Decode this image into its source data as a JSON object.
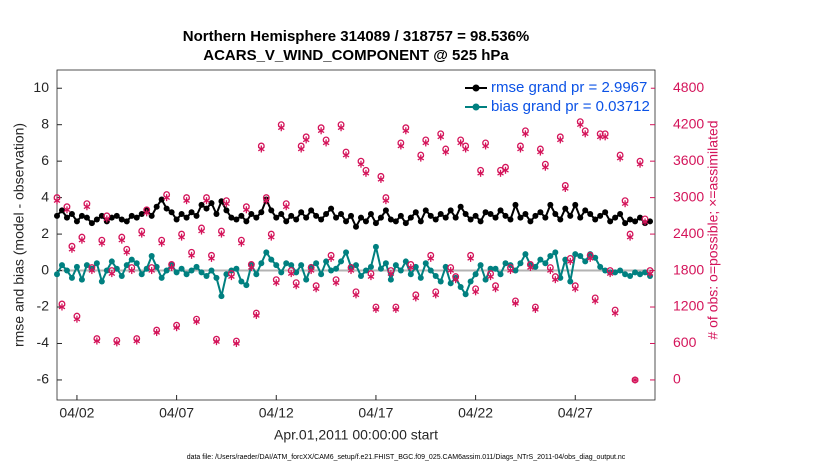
{
  "chart_data": {
    "type": "line",
    "title": "Northern Hemisphere 314089 / 318757 = 98.536%",
    "subtitle": "ACARS_V_WIND_COMPONENT @ 525 hPa",
    "xlabel": "Apr.01,2011 00:00:00 start",
    "ylabel": "rmse and bias (model - observation)",
    "y2label": "# of obs: o=possible; ×=assimilated",
    "footnote": "data file: /Users/raeder/DAI/ATM_forcXX/CAM6_setup/f.e21.FHIST_BGC.f09_025.CAM6assim.011/Diags_NTrS_2011-04/obs_diag_output.nc",
    "legend": "upper right",
    "xlim": [
      0,
      30
    ],
    "xticks": [
      {
        "value": 1,
        "label": "04/02"
      },
      {
        "value": 6,
        "label": "04/07"
      },
      {
        "value": 11,
        "label": "04/12"
      },
      {
        "value": 16,
        "label": "04/17"
      },
      {
        "value": 21,
        "label": "04/22"
      },
      {
        "value": 26,
        "label": "04/27"
      }
    ],
    "ylim": [
      -7.1,
      11
    ],
    "yticks": [
      -6,
      -4,
      -2,
      0,
      2,
      4,
      6,
      8,
      10
    ],
    "y2lim": [
      -330,
      5100
    ],
    "y2ticks": [
      0,
      600,
      1200,
      1800,
      2400,
      3000,
      3600,
      4200,
      4800
    ],
    "x": [
      0,
      0.25,
      0.5,
      0.75,
      1,
      1.25,
      1.5,
      1.75,
      2,
      2.25,
      2.5,
      2.75,
      3,
      3.25,
      3.5,
      3.75,
      4,
      4.25,
      4.5,
      4.75,
      5,
      5.25,
      5.5,
      5.75,
      6,
      6.25,
      6.5,
      6.75,
      7,
      7.25,
      7.5,
      7.75,
      8,
      8.25,
      8.5,
      8.75,
      9,
      9.25,
      9.5,
      9.75,
      10,
      10.25,
      10.5,
      10.75,
      11,
      11.25,
      11.5,
      11.75,
      12,
      12.25,
      12.5,
      12.75,
      13,
      13.25,
      13.5,
      13.75,
      14,
      14.25,
      14.5,
      14.75,
      15,
      15.25,
      15.5,
      15.75,
      16,
      16.25,
      16.5,
      16.75,
      17,
      17.25,
      17.5,
      17.75,
      18,
      18.25,
      18.5,
      18.75,
      19,
      19.25,
      19.5,
      19.75,
      20,
      20.25,
      20.5,
      20.75,
      21,
      21.25,
      21.5,
      21.75,
      22,
      22.25,
      22.5,
      22.75,
      23,
      23.25,
      23.5,
      23.75,
      24,
      24.25,
      24.5,
      24.75,
      25,
      25.25,
      25.5,
      25.75,
      26,
      26.25,
      26.5,
      26.75,
      27,
      27.25,
      27.5,
      27.75,
      28,
      28.25,
      28.5,
      28.75,
      29,
      29.25,
      29.5,
      29.75
    ],
    "series": [
      {
        "name": "rmse grand pr = 2.9967",
        "color": "#000000",
        "marker": "dot",
        "values": [
          3.0,
          3.3,
          2.9,
          3.1,
          2.7,
          3.0,
          2.9,
          2.6,
          2.8,
          3.0,
          2.7,
          2.9,
          3.0,
          2.8,
          2.7,
          3.0,
          2.9,
          3.1,
          3.3,
          3.0,
          3.5,
          3.9,
          3.4,
          3.2,
          2.8,
          3.1,
          2.9,
          3.2,
          3.0,
          3.6,
          3.4,
          3.7,
          3.1,
          3.8,
          3.3,
          2.9,
          2.8,
          3.0,
          2.7,
          3.1,
          2.9,
          3.2,
          3.9,
          3.3,
          2.9,
          3.1,
          2.7,
          3.0,
          2.8,
          3.2,
          2.9,
          3.3,
          3.0,
          2.8,
          3.1,
          3.4,
          2.9,
          3.1,
          2.7,
          3.0,
          2.4,
          2.9,
          2.7,
          3.1,
          2.6,
          2.9,
          3.3,
          2.8,
          2.7,
          3.0,
          2.6,
          2.9,
          3.2,
          2.7,
          3.3,
          3.0,
          2.8,
          3.1,
          2.9,
          3.3,
          2.9,
          3.5,
          3.1,
          2.8,
          3.0,
          2.7,
          3.2,
          3.1,
          2.9,
          3.3,
          3.0,
          2.8,
          3.6,
          2.9,
          3.1,
          2.7,
          3.0,
          3.2,
          2.9,
          3.6,
          3.1,
          2.8,
          3.4,
          3.0,
          3.6,
          2.9,
          3.3,
          3.1,
          2.8,
          3.0,
          3.2,
          2.7,
          2.9,
          3.1,
          2.6,
          2.8,
          2.7,
          2.9,
          2.6,
          2.7
        ]
      },
      {
        "name": "bias grand pr = 0.03712",
        "color": "#008080",
        "marker": "dot",
        "values": [
          -0.2,
          0.3,
          0.0,
          -0.4,
          0.2,
          -0.5,
          0.3,
          0.1,
          0.4,
          -0.6,
          0.0,
          0.5,
          0.1,
          -0.3,
          0.3,
          0.6,
          0.4,
          -0.2,
          0.1,
          0.8,
          0.2,
          -0.4,
          0.0,
          0.3,
          -0.1,
          0.1,
          -0.2,
          0.0,
          0.2,
          -0.1,
          -0.3,
          0.0,
          -0.4,
          -1.4,
          -0.2,
          0.0,
          0.1,
          -0.6,
          -0.8,
          0.3,
          -0.2,
          0.4,
          1.0,
          0.6,
          0.3,
          -0.1,
          0.4,
          0.3,
          -0.1,
          0.3,
          -0.5,
          0.2,
          0.4,
          -0.2,
          0.5,
          0.0,
          0.1,
          0.5,
          1.0,
          0.2,
          0.3,
          -0.3,
          0.0,
          0.2,
          1.3,
          0.1,
          0.4,
          -0.5,
          0.3,
          0.0,
          0.5,
          -0.2,
          0.2,
          -0.4,
          0.4,
          0.0,
          -0.3,
          -0.6,
          0.2,
          -0.7,
          -0.4,
          -0.9,
          -1.3,
          -0.6,
          -0.2,
          0.3,
          -0.5,
          0.1,
          0.1,
          -0.2,
          0.4,
          0.3,
          0.0,
          0.4,
          0.9,
          0.3,
          0.2,
          0.6,
          0.4,
          0.8,
          1.0,
          -0.4,
          0.6,
          -0.6,
          0.9,
          0.8,
          0.5,
          0.9,
          0.7,
          0.2,
          0.0,
          -0.1,
          -0.1,
          0.0,
          -0.2,
          -0.3,
          -0.1,
          -0.2,
          -0.1,
          -0.3
        ]
      },
      {
        "color": "#d4145a",
        "marker": "o",
        "axis": "y2",
        "values": [
          3000,
          1250,
          2850,
          2200,
          1050,
          2350,
          2900,
          1850,
          680,
          2300,
          2700,
          1800,
          650,
          2350,
          2150,
          1850,
          680,
          2450,
          2800,
          1850,
          820,
          2300,
          3050,
          1900,
          900,
          2400,
          3000,
          2100,
          1000,
          2500,
          3000,
          2050,
          670,
          2450,
          2950,
          1750,
          640,
          2300,
          2850,
          1900,
          1100,
          3850,
          3000,
          2400,
          1650,
          4200,
          2900,
          1800,
          1600,
          3850,
          4000,
          1850,
          1550,
          4150,
          3950,
          2050,
          1650,
          4200,
          3750,
          1850,
          1450,
          3600,
          3450,
          1750,
          1200,
          3350,
          3000,
          1800,
          1200,
          3900,
          4150,
          1900,
          1400,
          3700,
          3950,
          2050,
          1450,
          4050,
          3800,
          1850,
          1700,
          3950,
          3850,
          2050,
          1500,
          3450,
          3900,
          1750,
          1550,
          3450,
          3500,
          1850,
          1300,
          3850,
          4100,
          1900,
          1200,
          3800,
          3550,
          1850,
          1700,
          4000,
          3200,
          2000,
          1550,
          4250,
          4100,
          2050,
          1350,
          4050,
          4050,
          1800,
          1150,
          3700,
          2950,
          2400,
          0,
          3600,
          2650,
          1800
        ]
      },
      {
        "color": "#d4145a",
        "marker": "*",
        "axis": "y2",
        "values": [
          2950,
          1200,
          2800,
          2150,
          1000,
          2300,
          2850,
          1800,
          640,
          2250,
          2650,
          1750,
          610,
          2300,
          2100,
          1800,
          640,
          2400,
          2750,
          1800,
          780,
          2250,
          3000,
          1850,
          860,
          2350,
          2950,
          2050,
          960,
          2450,
          2950,
          2000,
          630,
          2400,
          2900,
          1700,
          600,
          2250,
          2800,
          1850,
          1060,
          3800,
          2950,
          2350,
          1600,
          4150,
          2850,
          1750,
          1550,
          3800,
          3950,
          1800,
          1500,
          4100,
          3900,
          2000,
          1600,
          4150,
          3700,
          1800,
          1400,
          3550,
          3400,
          1700,
          1160,
          3300,
          2950,
          1750,
          1160,
          3850,
          4100,
          1850,
          1350,
          3650,
          3900,
          2000,
          1400,
          4000,
          3750,
          1800,
          1650,
          3900,
          3800,
          2000,
          1450,
          3400,
          3850,
          1700,
          1500,
          3400,
          3450,
          1800,
          1260,
          3800,
          4050,
          1850,
          1160,
          3750,
          3500,
          1800,
          1650,
          3950,
          3150,
          1950,
          1500,
          4200,
          4050,
          2000,
          1300,
          4000,
          4000,
          1750,
          1100,
          3650,
          2900,
          2350,
          0,
          3550,
          2600,
          1750
        ]
      }
    ]
  }
}
